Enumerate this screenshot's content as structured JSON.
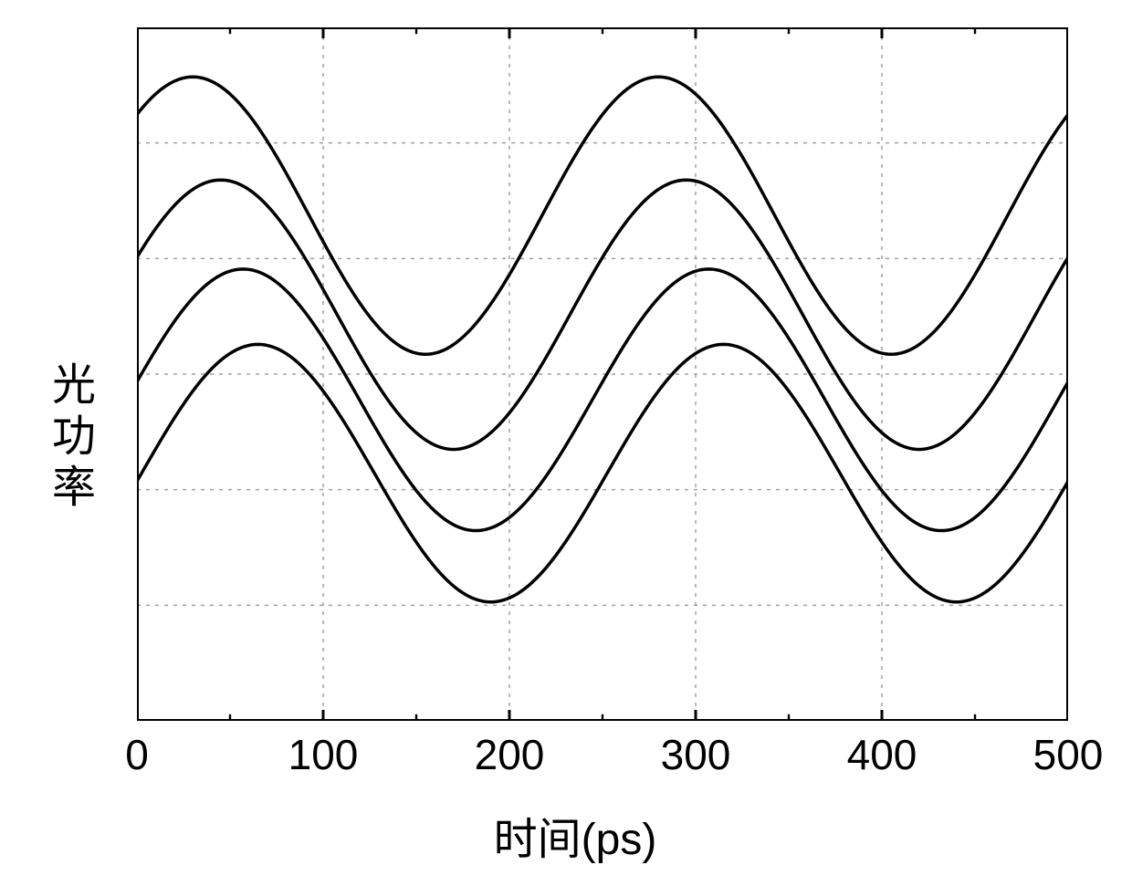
{
  "chart": {
    "type": "line",
    "xlabel": "时间(ps)",
    "ylabel": "光功率",
    "xlim": [
      0,
      500
    ],
    "ylim": [
      -1.5,
      2.0
    ],
    "x_ticks": [
      0,
      100,
      200,
      300,
      400,
      500
    ],
    "x_tick_labels": [
      "0",
      "100",
      "200",
      "300",
      "400",
      "500"
    ],
    "y_grid_lines": 6,
    "background_color": "#ffffff",
    "border_color": "#000000",
    "border_width": 4,
    "grid_color": "#a0a0a0",
    "grid_dash": "4,6",
    "grid_width": 1.5,
    "line_color": "#000000",
    "line_width": 3.5,
    "tick_length": 12,
    "tick_width": 3,
    "label_fontsize": 48,
    "tick_fontsize": 46,
    "series": [
      {
        "name": "curve1",
        "offset": 1.05,
        "amplitude": 0.7,
        "period": 250,
        "phase": 30
      },
      {
        "name": "curve2",
        "offset": 0.55,
        "amplitude": 0.68,
        "period": 250,
        "phase": 45
      },
      {
        "name": "curve3",
        "offset": 0.12,
        "amplitude": 0.66,
        "period": 250,
        "phase": 57
      },
      {
        "name": "curve4",
        "offset": -0.25,
        "amplitude": 0.65,
        "period": 250,
        "phase": 65
      }
    ]
  }
}
